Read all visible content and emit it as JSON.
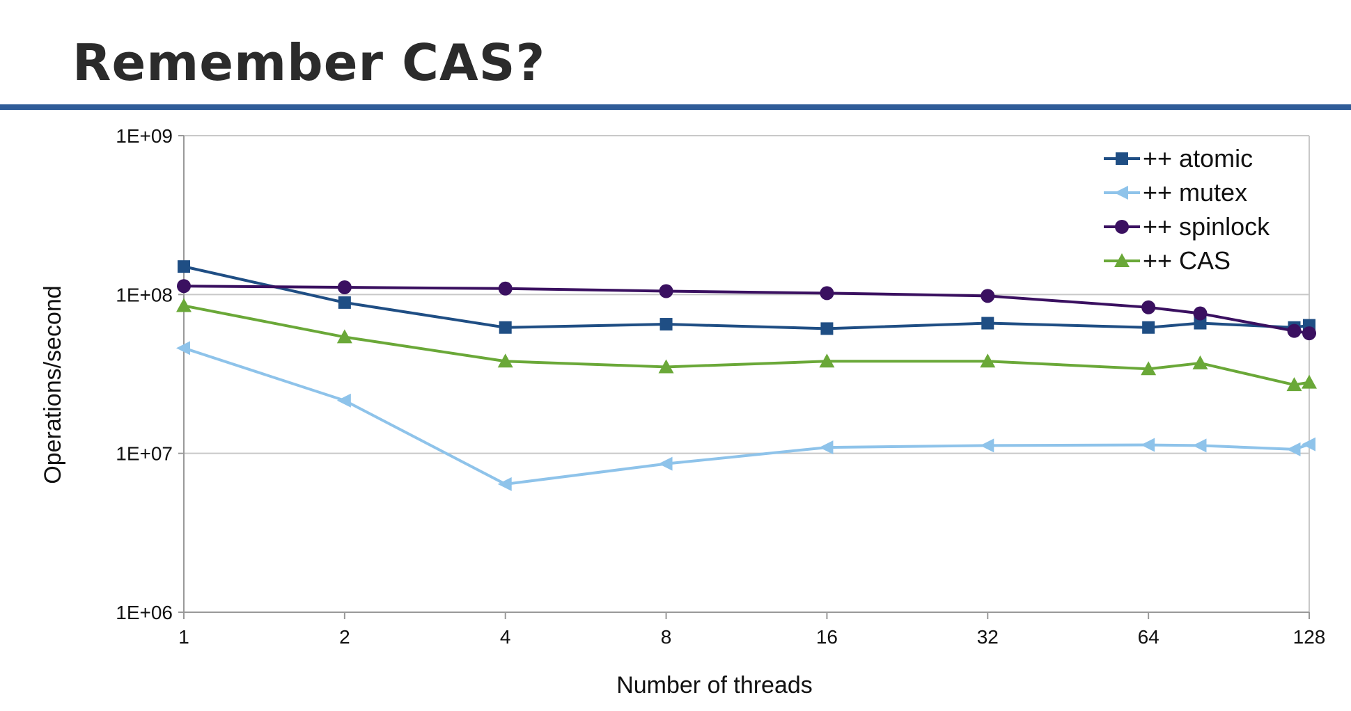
{
  "slide": {
    "title": "Remember CAS?",
    "rule_color": "#2f5c98"
  },
  "chart_data": {
    "type": "line",
    "x_scale": "log2",
    "y_scale": "log10",
    "xlabel": "Number of threads",
    "ylabel": "Operations/second",
    "x_ticks": [
      1,
      2,
      4,
      8,
      16,
      32,
      64,
      128
    ],
    "x_tick_labels": [
      "1",
      "2",
      "4",
      "8",
      "16",
      "32",
      "64",
      "128"
    ],
    "y_ticks": [
      1000000,
      10000000,
      100000000,
      1000000000
    ],
    "y_tick_labels": [
      "1E+06",
      "1E+07",
      "1E+08",
      "1E+09"
    ],
    "xlim": [
      1,
      128
    ],
    "ylim": [
      1000000,
      1000000000
    ],
    "grid": "horizontal",
    "legend_position": "top-right",
    "series": [
      {
        "name": "++ atomic",
        "color": "#1f4e84",
        "marker": "square",
        "x": [
          1,
          2,
          4,
          8,
          16,
          32,
          64,
          80,
          120,
          128
        ],
        "values": [
          150000000,
          89000000,
          62000000,
          65000000,
          61000000,
          66000000,
          62000000,
          66000000,
          62000000,
          64000000
        ]
      },
      {
        "name": "++ mutex",
        "color": "#8ec3ea",
        "marker": "triangle-left",
        "x": [
          1,
          2,
          4,
          8,
          16,
          32,
          64,
          80,
          120,
          128
        ],
        "values": [
          46000000,
          21500000,
          6400000,
          8600000,
          10900000,
          11200000,
          11300000,
          11200000,
          10600000,
          11400000
        ]
      },
      {
        "name": "++ spinlock",
        "color": "#3a1060",
        "marker": "circle",
        "x": [
          1,
          2,
          4,
          8,
          16,
          32,
          64,
          80,
          120,
          128
        ],
        "values": [
          113000000,
          111000000,
          109000000,
          105000000,
          102000000,
          98000000,
          83000000,
          76000000,
          59000000,
          57000000
        ]
      },
      {
        "name": "++ CAS",
        "color": "#6aa838",
        "marker": "triangle-up",
        "x": [
          1,
          2,
          4,
          8,
          16,
          32,
          64,
          80,
          120,
          128
        ],
        "values": [
          85000000,
          54000000,
          38000000,
          35000000,
          38000000,
          38000000,
          34000000,
          37000000,
          27000000,
          28000000
        ]
      }
    ]
  }
}
